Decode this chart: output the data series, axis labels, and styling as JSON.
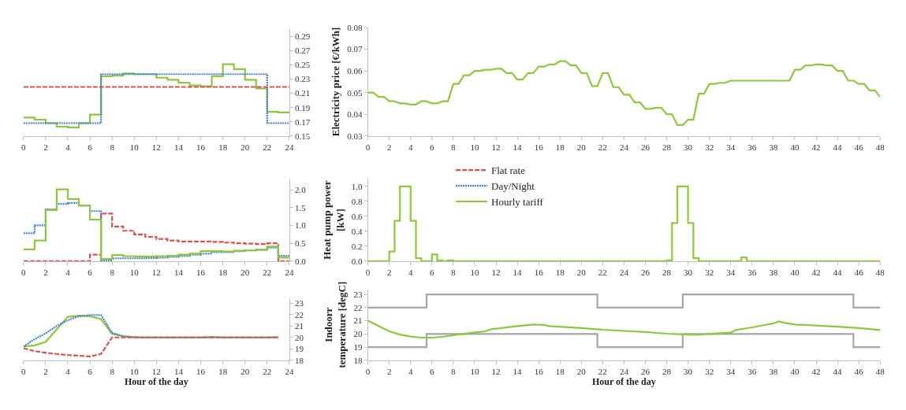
{
  "chart_data": [
    {
      "type": "step",
      "xlim": [
        0,
        24
      ],
      "xticks": [
        0,
        2,
        4,
        6,
        8,
        10,
        12,
        14,
        16,
        18,
        20,
        22,
        24
      ],
      "ylim": [
        0.15,
        0.3
      ],
      "yticks": [
        0.15,
        0.17,
        0.19,
        0.21,
        0.23,
        0.25,
        0.27,
        0.29
      ],
      "x": [
        0,
        1,
        2,
        3,
        4,
        5,
        6,
        7,
        8,
        9,
        10,
        11,
        12,
        13,
        14,
        15,
        16,
        17,
        18,
        19,
        20,
        21,
        22,
        23,
        24
      ],
      "series": [
        {
          "color": "#8dc63f",
          "line_style": "solid",
          "values": [
            0.176,
            0.173,
            0.168,
            0.163,
            0.162,
            0.168,
            0.18,
            0.234,
            0.235,
            0.238,
            0.237,
            0.237,
            0.232,
            0.229,
            0.225,
            0.221,
            0.22,
            0.234,
            0.251,
            0.244,
            0.229,
            0.217,
            0.184,
            0.183,
            0.183
          ]
        },
        {
          "color": "#4a7fd4",
          "line_style": "dotted",
          "values": [
            0.168,
            0.168,
            0.168,
            0.168,
            0.168,
            0.168,
            0.168,
            0.237,
            0.237,
            0.237,
            0.237,
            0.237,
            0.237,
            0.237,
            0.237,
            0.237,
            0.237,
            0.237,
            0.237,
            0.237,
            0.237,
            0.237,
            0.168,
            0.168,
            0.168
          ]
        },
        {
          "color": "#d9534f",
          "line_style": "dashed",
          "values": [
            0.219,
            0.219,
            0.219,
            0.219,
            0.219,
            0.219,
            0.219,
            0.219,
            0.219,
            0.219,
            0.219,
            0.219,
            0.219,
            0.219,
            0.219,
            0.219,
            0.219,
            0.219,
            0.219,
            0.219,
            0.219,
            0.219,
            0.219,
            0.219,
            0.219
          ]
        }
      ]
    },
    {
      "type": "line",
      "ylabel": "Electricity price [€/kWh]",
      "xlim": [
        0,
        48
      ],
      "xticks": [
        0,
        2,
        4,
        6,
        8,
        10,
        12,
        14,
        16,
        18,
        20,
        22,
        24,
        26,
        28,
        30,
        32,
        34,
        36,
        38,
        40,
        42,
        44,
        46,
        48
      ],
      "ylim": [
        0.03,
        0.08
      ],
      "yticks": [
        0.03,
        0.04,
        0.05,
        0.06,
        0.07,
        0.08
      ],
      "series": [
        {
          "color": "#8dc63f",
          "x": [
            0,
            0.5,
            1,
            1.5,
            2,
            2.5,
            3,
            3.5,
            4,
            4.5,
            5,
            5.5,
            6,
            6.5,
            7,
            7.5,
            8,
            8.5,
            9,
            9.5,
            10,
            10.5,
            11,
            11.5,
            12,
            12.5,
            13,
            13.5,
            14,
            14.5,
            15,
            15.5,
            16,
            16.5,
            17,
            17.5,
            18,
            18.5,
            19,
            19.5,
            20,
            20.5,
            21,
            21.5,
            22,
            22.5,
            23,
            23.5,
            24,
            24.5,
            25,
            25.5,
            26,
            26.5,
            27,
            27.5,
            28,
            28.5,
            29,
            29.5,
            30,
            30.5,
            31,
            31.5,
            32,
            32.5,
            33,
            33.5,
            34,
            34.5,
            39.5,
            40,
            40.5,
            41,
            41.5,
            42,
            42.5,
            43,
            43.5,
            44,
            44.5,
            45,
            45.5,
            46,
            46.5,
            47,
            47.5,
            48
          ],
          "values": [
            0.05,
            0.05,
            0.048,
            0.048,
            0.046,
            0.046,
            0.045,
            0.045,
            0.0445,
            0.0445,
            0.046,
            0.046,
            0.045,
            0.045,
            0.046,
            0.046,
            0.054,
            0.054,
            0.058,
            0.058,
            0.06,
            0.06,
            0.0605,
            0.0605,
            0.061,
            0.061,
            0.059,
            0.059,
            0.056,
            0.056,
            0.059,
            0.059,
            0.062,
            0.062,
            0.063,
            0.063,
            0.0645,
            0.0645,
            0.0625,
            0.0625,
            0.059,
            0.059,
            0.053,
            0.053,
            0.059,
            0.059,
            0.0525,
            0.0525,
            0.049,
            0.049,
            0.0455,
            0.0455,
            0.0425,
            0.0425,
            0.043,
            0.043,
            0.04,
            0.04,
            0.035,
            0.035,
            0.0375,
            0.0375,
            0.0495,
            0.0495,
            0.054,
            0.054,
            0.0545,
            0.0545,
            0.0555,
            0.0555,
            0.0555,
            0.0605,
            0.0605,
            0.0625,
            0.0625,
            0.063,
            0.063,
            0.0625,
            0.0625,
            0.06,
            0.06,
            0.0555,
            0.0555,
            0.054,
            0.054,
            0.051,
            0.051,
            0.048
          ]
        }
      ]
    },
    {
      "type": "step",
      "xlim": [
        0,
        24
      ],
      "xticks": [
        0,
        2,
        4,
        6,
        8,
        10,
        12,
        14,
        16,
        18,
        20,
        22,
        24
      ],
      "ylim": [
        0,
        2.3
      ],
      "yticks": [
        {
          "value": 0,
          "label": "0.0"
        },
        {
          "value": 0.5,
          "label": "0.5"
        },
        {
          "value": 1,
          "label": "1.0"
        },
        {
          "value": 1.5,
          "label": "1.5"
        },
        {
          "value": 2,
          "label": "2.0"
        }
      ],
      "legend": "right",
      "x": [
        0,
        1,
        2,
        3,
        4,
        5,
        6,
        7,
        8,
        9,
        10,
        11,
        12,
        13,
        14,
        15,
        16,
        17,
        18,
        19,
        20,
        21,
        22,
        23,
        24
      ],
      "series": [
        {
          "name": "Flat rate",
          "color": "#d9534f",
          "line_style": "dashed",
          "values": [
            0,
            0,
            0,
            0,
            0,
            0,
            0.18,
            1.33,
            0.97,
            0.85,
            0.75,
            0.68,
            0.62,
            0.58,
            0.55,
            0.55,
            0.55,
            0.54,
            0.52,
            0.5,
            0.49,
            0.48,
            0.5,
            0,
            0
          ]
        },
        {
          "name": "Day/Night",
          "color": "#4a7fd4",
          "line_style": "dotted",
          "values": [
            0.78,
            1.0,
            1.45,
            1.6,
            1.63,
            1.55,
            1.4,
            0.02,
            0.08,
            0.08,
            0.08,
            0.09,
            0.1,
            0.12,
            0.15,
            0.18,
            0.21,
            0.25,
            0.25,
            0.28,
            0.3,
            0.32,
            0.38,
            0.15,
            0.15
          ]
        },
        {
          "name": "Hourly tariff",
          "color": "#8dc63f",
          "line_style": "solid",
          "values": [
            0.33,
            0.58,
            1.43,
            2.01,
            1.74,
            1.56,
            1.16,
            0.06,
            0.17,
            0.14,
            0.13,
            0.13,
            0.14,
            0.15,
            0.18,
            0.21,
            0.28,
            0.28,
            0.27,
            0.29,
            0.3,
            0.32,
            0.41,
            0.1,
            0.1
          ]
        }
      ]
    },
    {
      "type": "step",
      "ylabel": "Heat pump power\n[kW]",
      "xlim": [
        0,
        48
      ],
      "xticks": [
        0,
        2,
        4,
        6,
        8,
        10,
        12,
        14,
        16,
        18,
        20,
        22,
        24,
        26,
        28,
        30,
        32,
        34,
        36,
        38,
        40,
        42,
        44,
        46,
        48
      ],
      "ylim": [
        0,
        1.1
      ],
      "yticks": [
        {
          "value": 0,
          "label": "0.0"
        },
        {
          "value": 0.2,
          "label": "0.2"
        },
        {
          "value": 0.4,
          "label": "0.4"
        },
        {
          "value": 0.6,
          "label": "0.6"
        },
        {
          "value": 0.8,
          "label": "0.8"
        },
        {
          "value": 1,
          "label": "1.0"
        }
      ],
      "series": [
        {
          "color": "#8dc63f",
          "x": [
            0,
            2,
            2.5,
            3,
            4,
            4.5,
            5,
            6,
            6.5,
            7,
            7.5,
            8,
            28,
            28.5,
            29,
            30,
            30.5,
            31,
            35,
            35.5,
            48
          ],
          "values": [
            0,
            0.13,
            0.54,
            1.0,
            0.54,
            0.04,
            0,
            0.09,
            0.01,
            0,
            0.01,
            0,
            0.01,
            0.51,
            1.0,
            0.51,
            0.04,
            0,
            0.05,
            0,
            0
          ]
        }
      ]
    },
    {
      "type": "line",
      "xlabel": "Hour of the day",
      "xlim": [
        0,
        24
      ],
      "xticks": [
        0,
        2,
        4,
        6,
        8,
        10,
        12,
        14,
        16,
        18,
        20,
        22,
        24
      ],
      "ylim": [
        18,
        23.4
      ],
      "yticks": [
        18,
        19,
        20,
        21,
        22,
        23
      ],
      "x": [
        0,
        1,
        2,
        3,
        4,
        5,
        6,
        7,
        8,
        9,
        10,
        11,
        12,
        13,
        14,
        15,
        16,
        17,
        18,
        19,
        20,
        21,
        22,
        23
      ],
      "series": [
        {
          "color": "#8dc63f",
          "line_style": "solid",
          "values": [
            19.2,
            19.3,
            19.6,
            20.7,
            21.8,
            21.9,
            21.85,
            21.6,
            20.3,
            20.1,
            20.02,
            20.0,
            20.0,
            20.0,
            20.0,
            20.0,
            20.0,
            20.05,
            20.0,
            20.0,
            20.0,
            20.0,
            20.0,
            20.02
          ]
        },
        {
          "color": "#4a7fd4",
          "line_style": "dotted",
          "values": [
            19.2,
            19.85,
            20.35,
            21.0,
            21.5,
            21.85,
            21.95,
            21.95,
            20.4,
            20.1,
            20.0,
            20.0,
            20.0,
            20.0,
            20.0,
            20.0,
            20.0,
            20.0,
            20.0,
            20.0,
            20.0,
            20.0,
            20.0,
            20.0
          ]
        },
        {
          "color": "#d9534f",
          "line_style": "dashed",
          "values": [
            19.05,
            18.8,
            18.65,
            18.55,
            18.45,
            18.4,
            18.33,
            18.55,
            20.0,
            20.0,
            20.0,
            20.0,
            20.0,
            20.0,
            20.0,
            20.0,
            20.0,
            20.0,
            20.0,
            20.0,
            20.0,
            20.0,
            20.0,
            20.0
          ]
        }
      ]
    },
    {
      "type": "line",
      "xlabel": "Hour of the day",
      "ylabel": "Indoorr\ntemperature [degC]",
      "xlim": [
        0,
        48
      ],
      "xticks": [
        0,
        2,
        4,
        6,
        8,
        10,
        12,
        14,
        16,
        18,
        20,
        22,
        24,
        26,
        28,
        30,
        32,
        34,
        36,
        38,
        40,
        42,
        44,
        46,
        48
      ],
      "ylim": [
        18,
        23.4
      ],
      "yticks": [
        18,
        19,
        20,
        21,
        22,
        23
      ],
      "series": [
        {
          "color": "#a6a6a6",
          "x": [
            0,
            5.5,
            5.5,
            21.5,
            21.5,
            29.5,
            29.5,
            45.5,
            45.5,
            48
          ],
          "values": [
            22,
            22,
            23,
            23,
            22,
            22,
            23,
            23,
            22,
            22
          ]
        },
        {
          "color": "#a6a6a6",
          "x": [
            0,
            5.5,
            5.5,
            21.5,
            21.5,
            29.5,
            29.5,
            45.5,
            45.5,
            48
          ],
          "values": [
            19,
            19,
            20,
            20,
            19,
            19,
            20,
            20,
            19,
            19
          ]
        },
        {
          "color": "#8dc63f",
          "x": [
            0,
            1,
            2,
            3,
            4,
            5,
            6,
            7,
            8,
            9,
            10,
            11,
            11.5,
            12.5,
            14,
            15.5,
            16.5,
            17,
            20,
            22,
            26,
            28,
            30,
            31,
            32,
            34,
            34.5,
            36,
            37,
            38,
            38.5,
            39,
            40,
            44,
            46,
            48
          ],
          "values": [
            21.0,
            20.6,
            20.2,
            19.95,
            19.8,
            19.72,
            19.72,
            19.78,
            19.9,
            20.0,
            20.12,
            20.2,
            20.35,
            20.45,
            20.6,
            20.72,
            20.68,
            20.6,
            20.45,
            20.32,
            20.15,
            20.02,
            19.95,
            19.93,
            20.0,
            20.1,
            20.3,
            20.5,
            20.65,
            20.8,
            20.95,
            20.85,
            20.72,
            20.55,
            20.45,
            20.3
          ]
        }
      ]
    }
  ]
}
